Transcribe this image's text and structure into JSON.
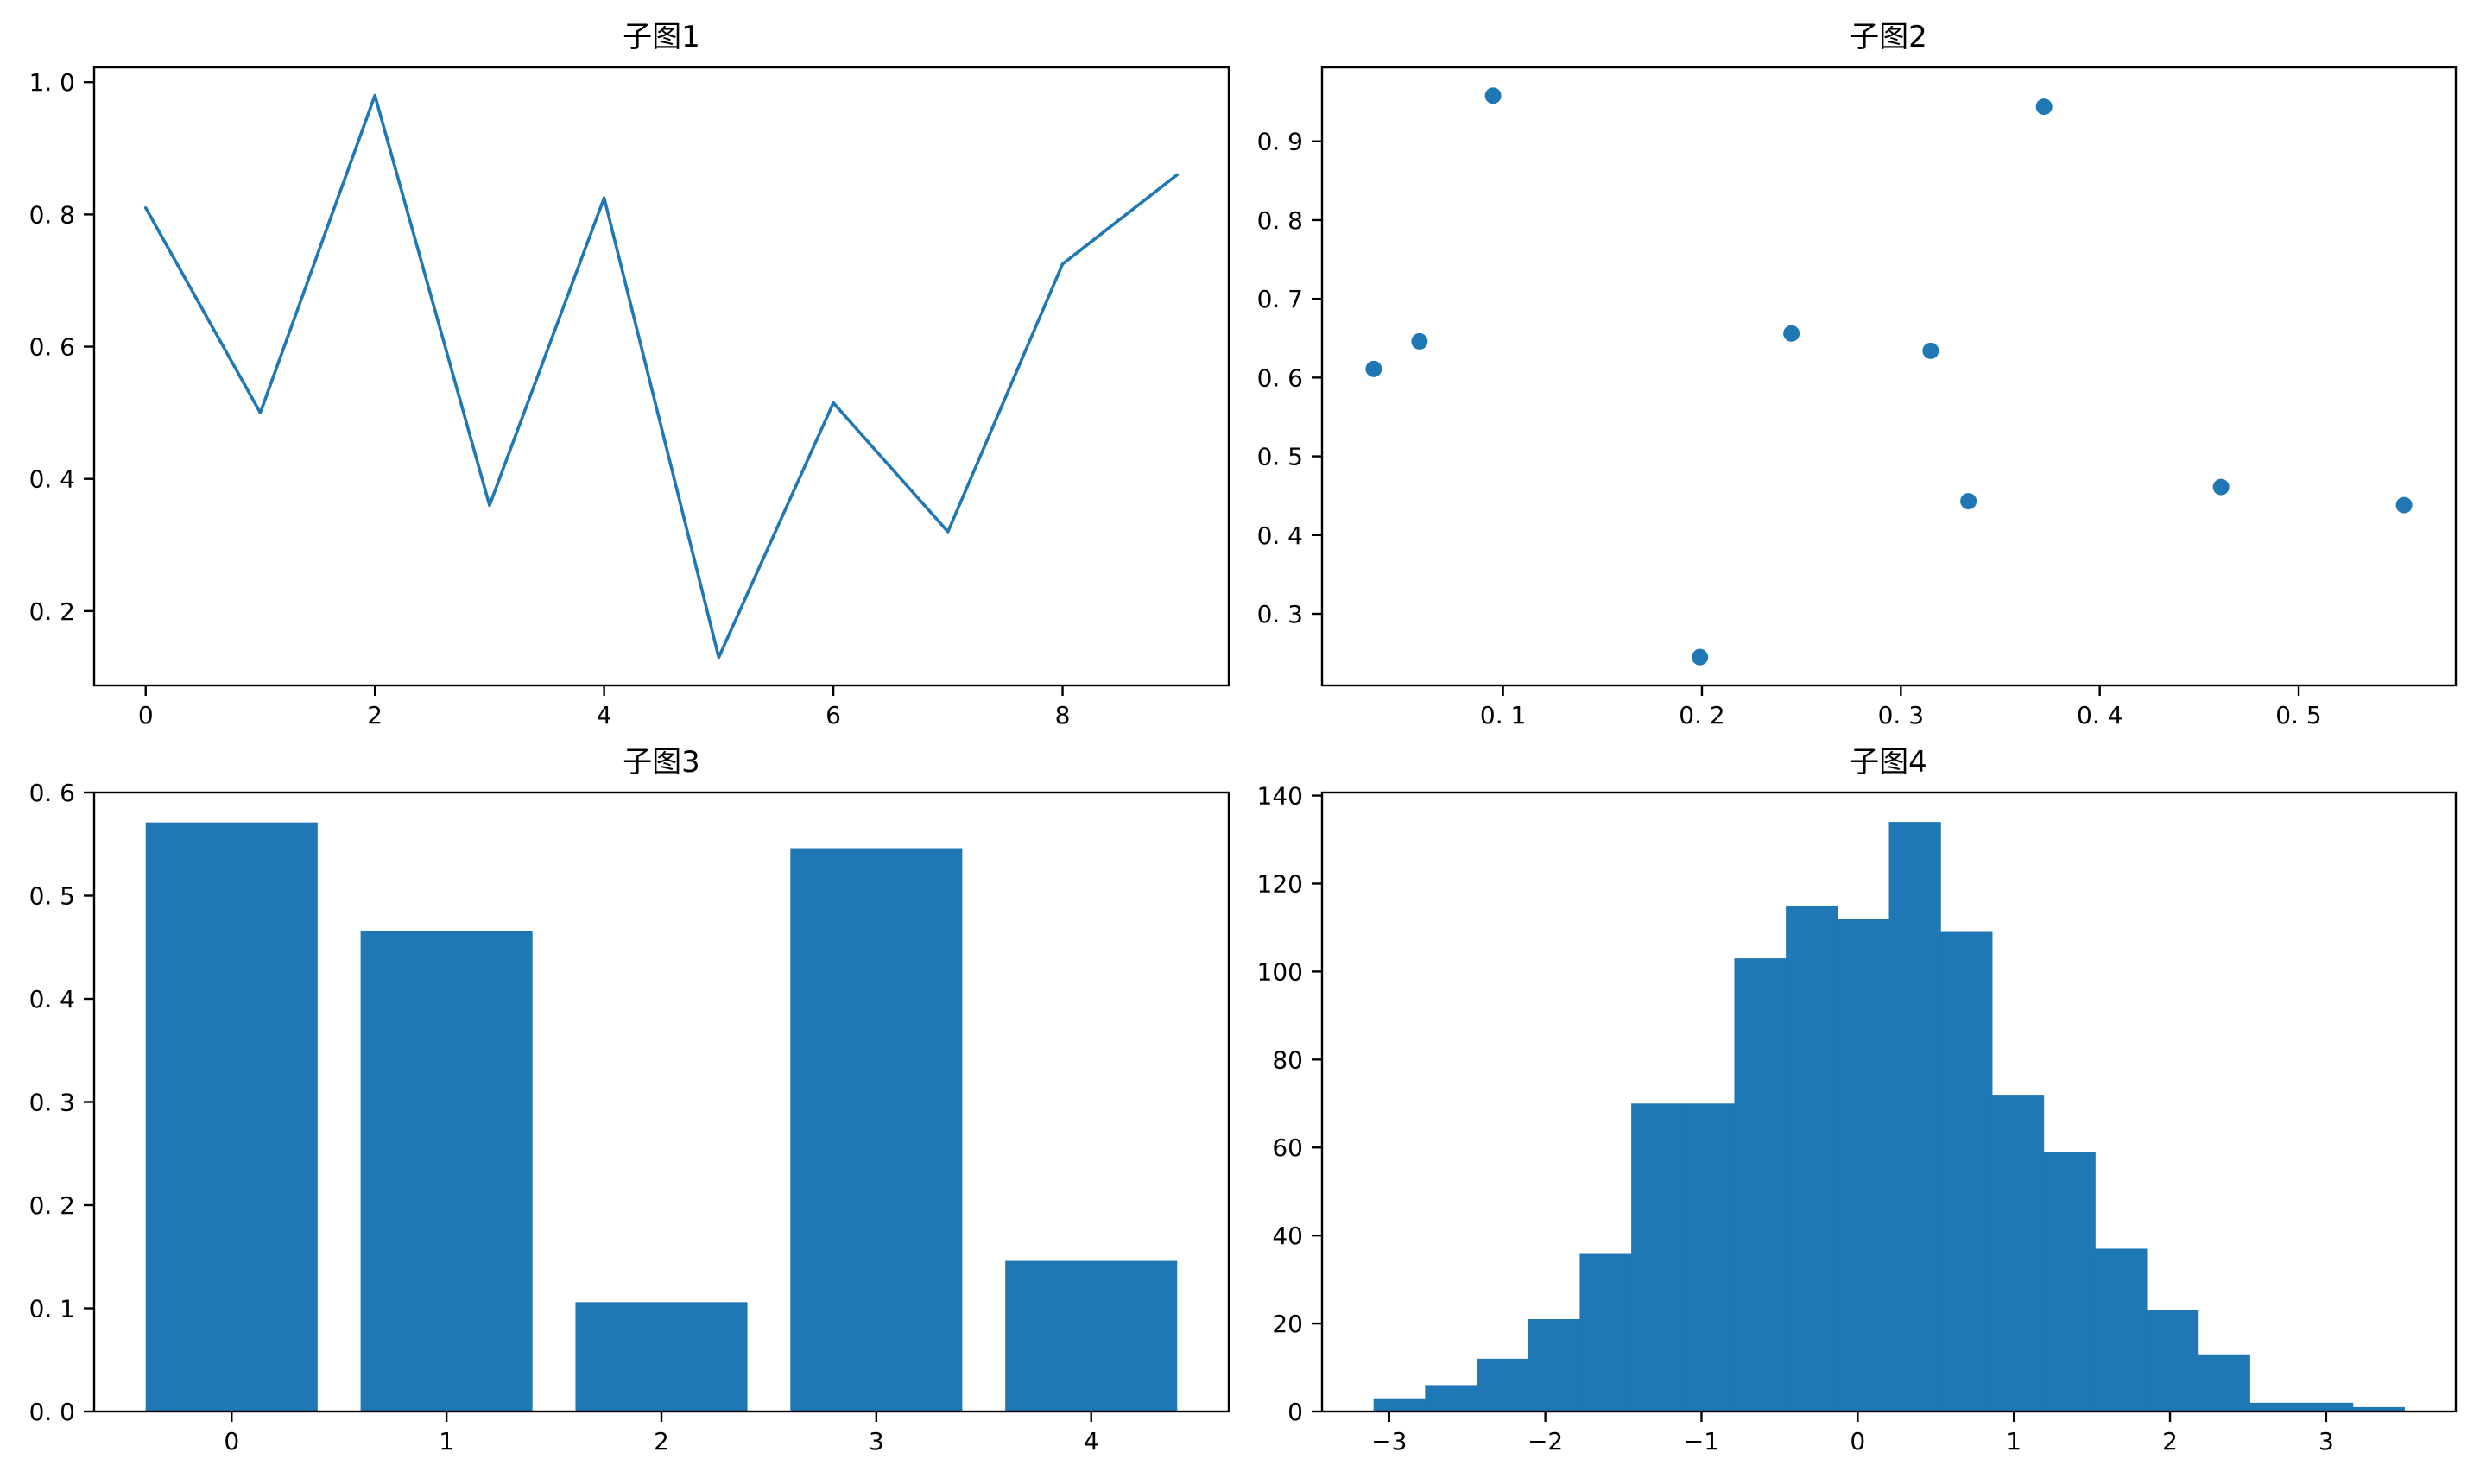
{
  "figure": {
    "background": "#ffffff",
    "accent_color": "#1f77b4"
  },
  "chart_data": [
    {
      "id": "subplot-1",
      "type": "line",
      "title": "子图1",
      "x": [
        0,
        1,
        2,
        3,
        4,
        5,
        6,
        7,
        8,
        9
      ],
      "y": [
        0.81,
        0.5,
        0.98,
        0.36,
        0.825,
        0.13,
        0.515,
        0.32,
        0.725,
        0.86
      ],
      "xlim": [
        -0.45,
        9.45
      ],
      "ylim": [
        0.0875,
        1.0225
      ],
      "xticks": [
        0,
        2,
        4,
        6,
        8
      ],
      "yticks": [
        0.2,
        0.4,
        0.6,
        0.8,
        1.0
      ],
      "x_decimals": 0,
      "y_decimals": 1,
      "grid": false,
      "legend": null,
      "color": "#1f77b4"
    },
    {
      "id": "subplot-2",
      "type": "scatter",
      "title": "子图2",
      "points": [
        [
          0.035,
          0.611
        ],
        [
          0.058,
          0.646
        ],
        [
          0.095,
          0.958
        ],
        [
          0.199,
          0.245
        ],
        [
          0.245,
          0.656
        ],
        [
          0.315,
          0.634
        ],
        [
          0.334,
          0.443
        ],
        [
          0.372,
          0.944
        ],
        [
          0.461,
          0.461
        ],
        [
          0.553,
          0.438
        ]
      ],
      "xlim": [
        0.009,
        0.579
      ],
      "ylim": [
        0.209,
        0.994
      ],
      "xticks": [
        0.1,
        0.2,
        0.3,
        0.4,
        0.5
      ],
      "yticks": [
        0.3,
        0.4,
        0.5,
        0.6,
        0.7,
        0.8,
        0.9
      ],
      "x_decimals": 1,
      "y_decimals": 1,
      "grid": false,
      "legend": null,
      "color": "#1f77b4"
    },
    {
      "id": "subplot-3",
      "type": "bar",
      "title": "子图3",
      "categories": [
        0,
        1,
        2,
        3,
        4
      ],
      "values": [
        0.571,
        0.466,
        0.106,
        0.546,
        0.146
      ],
      "bar_width": 0.8,
      "xlim": [
        -0.64,
        4.64
      ],
      "ylim": [
        0,
        0.6
      ],
      "xticks": [
        0,
        1,
        2,
        3,
        4
      ],
      "yticks": [
        0,
        0.1,
        0.2,
        0.3,
        0.4,
        0.5,
        0.6
      ],
      "x_decimals": 0,
      "y_decimals": 1,
      "grid": false,
      "legend": null,
      "color": "#1f77b4"
    },
    {
      "id": "subplot-4",
      "type": "histogram",
      "title": "子图4",
      "bin_start": -3.1,
      "bin_width": 0.33,
      "counts": [
        3,
        6,
        12,
        21,
        36,
        70,
        70,
        103,
        115,
        112,
        134,
        109,
        72,
        59,
        37,
        23,
        13,
        2,
        2,
        1
      ],
      "xlim": [
        -3.43,
        3.83
      ],
      "ylim": [
        0,
        140.7
      ],
      "xticks": [
        -3,
        -2,
        -1,
        0,
        1,
        2,
        3
      ],
      "yticks": [
        0,
        20,
        40,
        60,
        80,
        100,
        120,
        140
      ],
      "x_decimals": 0,
      "y_decimals": 0,
      "grid": false,
      "legend": null,
      "color": "#1f77b4"
    }
  ]
}
